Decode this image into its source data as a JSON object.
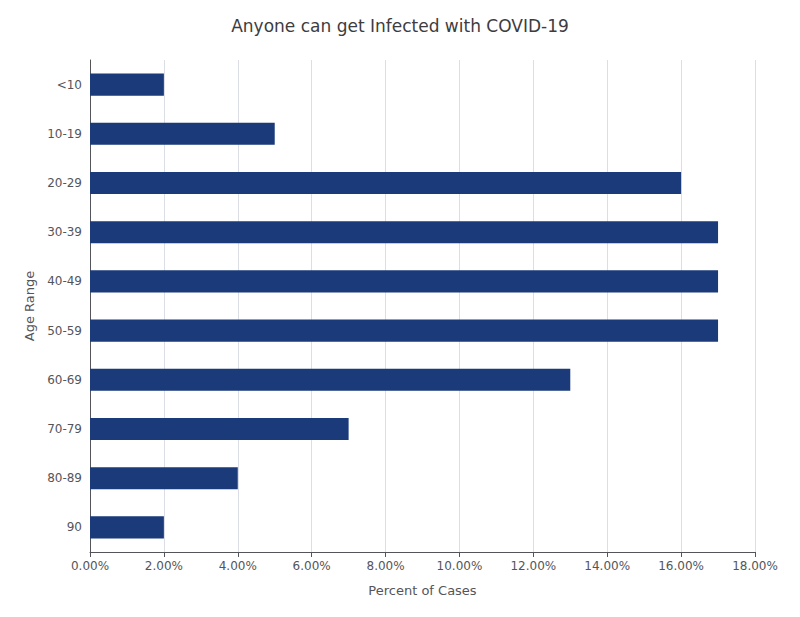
{
  "chart_data": {
    "type": "bar",
    "orientation": "horizontal",
    "title": "Anyone can get Infected with COVID-19",
    "xlabel": "Percent of Cases",
    "ylabel": "Age Range",
    "categories": [
      "<10",
      "10-19",
      "20-29",
      "30-39",
      "40-49",
      "50-59",
      "60-69",
      "70-79",
      "80-89",
      "90"
    ],
    "values": [
      2.0,
      5.0,
      16.0,
      17.0,
      17.0,
      17.0,
      13.0,
      7.0,
      4.0,
      2.0
    ],
    "color": "#1a3a7a",
    "xlim": [
      0,
      18.0
    ],
    "xticks": [
      {
        "value": 0,
        "label": "0.00%"
      },
      {
        "value": 2,
        "label": "2.00%"
      },
      {
        "value": 4,
        "label": "4.00%"
      },
      {
        "value": 6,
        "label": "6.00%"
      },
      {
        "value": 8,
        "label": "8.00%"
      },
      {
        "value": 10,
        "label": "10.00%"
      },
      {
        "value": 12,
        "label": "12.00%"
      },
      {
        "value": 14,
        "label": "14.00%"
      },
      {
        "value": 16,
        "label": "16.00%"
      },
      {
        "value": 18,
        "label": "18.00%"
      }
    ],
    "grid": true
  }
}
